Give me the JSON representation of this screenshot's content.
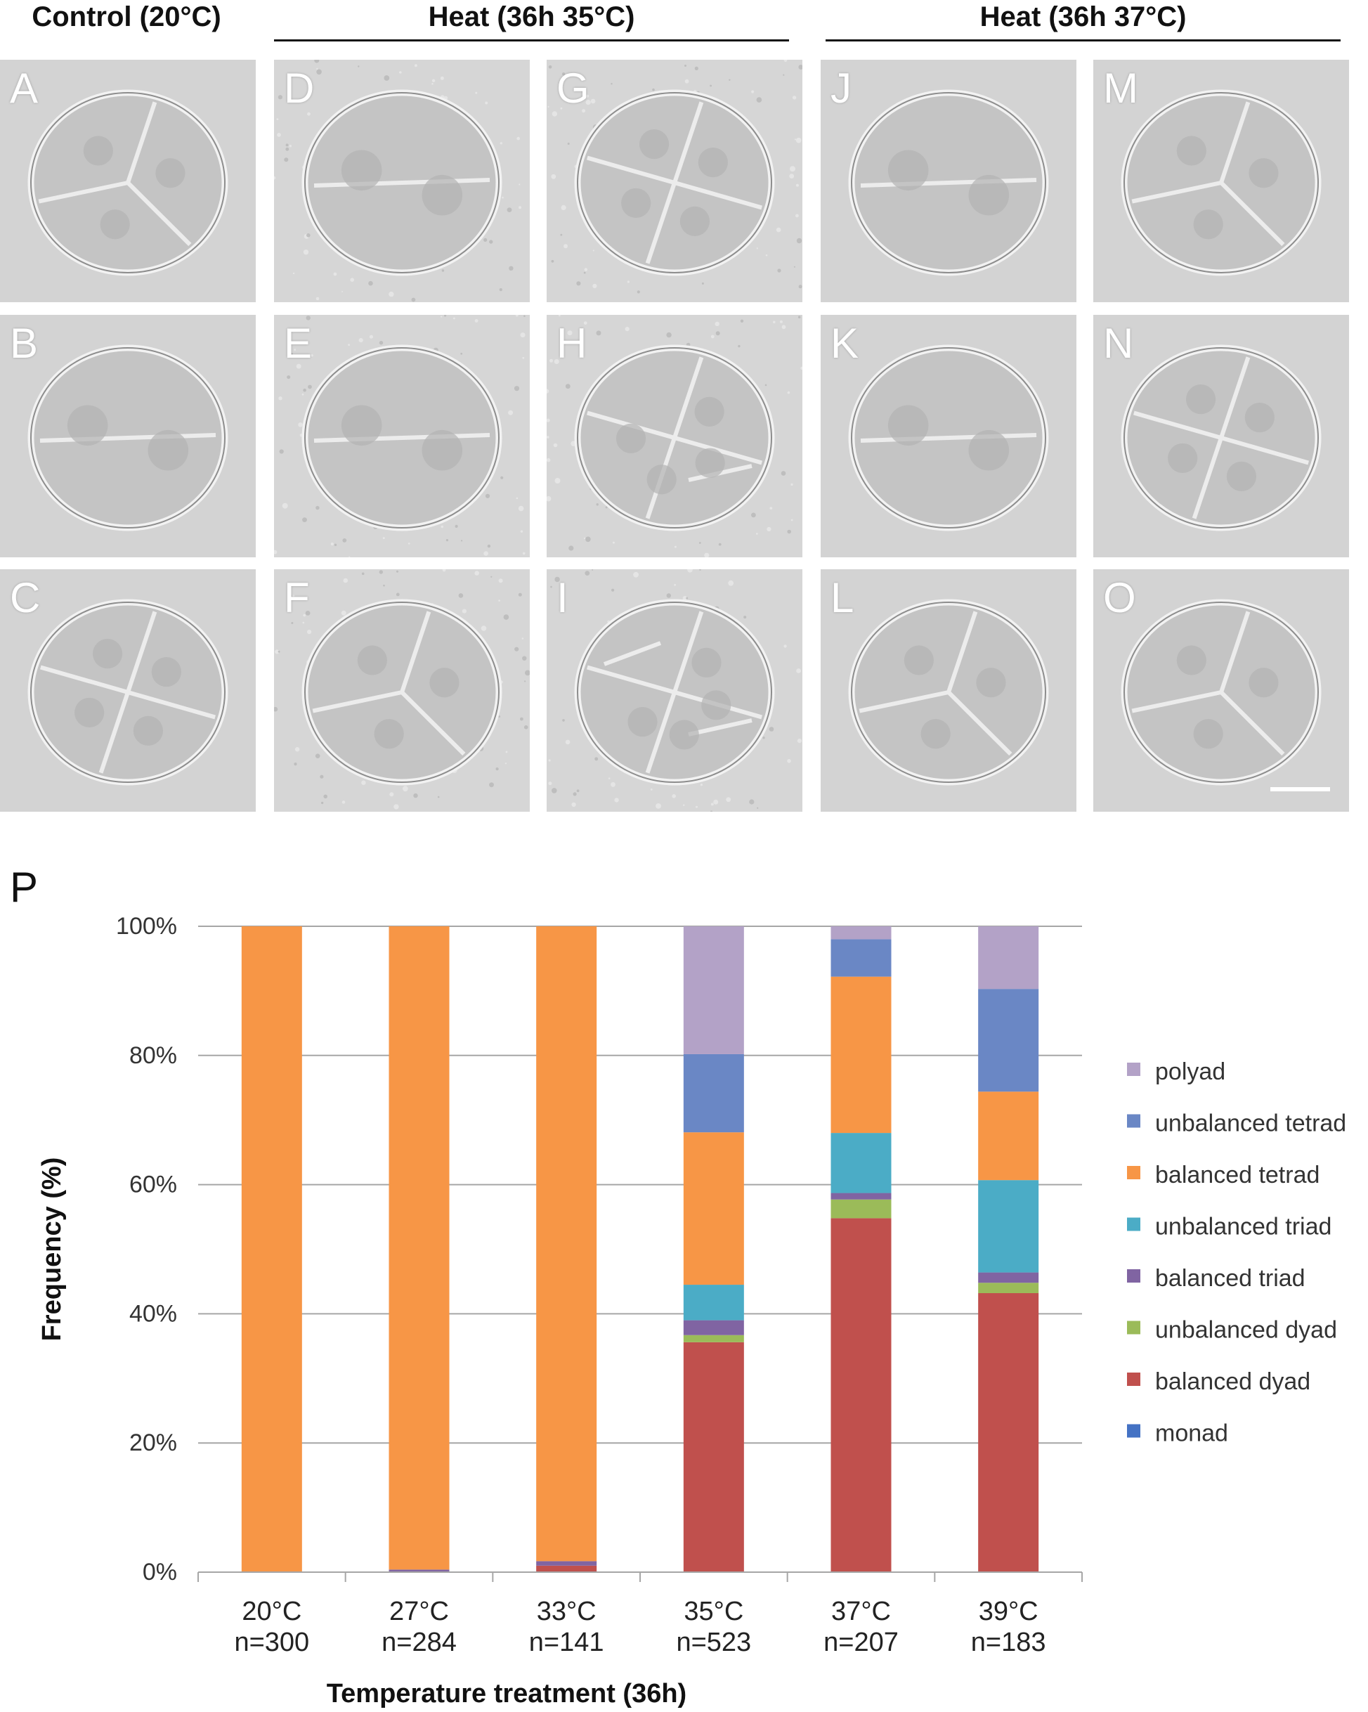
{
  "headers": {
    "control": "Control (20°C)",
    "heat35": "Heat (36h 35°C)",
    "heat37": "Heat (36h 37°C)"
  },
  "panels": [
    {
      "letter": "A",
      "cells": 3,
      "bg": "light"
    },
    {
      "letter": "B",
      "cells": 2,
      "bg": "light"
    },
    {
      "letter": "C",
      "cells": 4,
      "bg": "light"
    },
    {
      "letter": "D",
      "cells": 2,
      "bg": "speckled"
    },
    {
      "letter": "E",
      "cells": 2,
      "bg": "speckled"
    },
    {
      "letter": "F",
      "cells": 3,
      "bg": "speckled"
    },
    {
      "letter": "G",
      "cells": 4,
      "bg": "speckled"
    },
    {
      "letter": "H",
      "cells": 5,
      "bg": "speckled"
    },
    {
      "letter": "I",
      "cells": 6,
      "bg": "speckled"
    },
    {
      "letter": "J",
      "cells": 2,
      "bg": "light"
    },
    {
      "letter": "K",
      "cells": 2,
      "bg": "light"
    },
    {
      "letter": "L",
      "cells": 3,
      "bg": "light"
    },
    {
      "letter": "M",
      "cells": 3,
      "bg": "light"
    },
    {
      "letter": "N",
      "cells": 4,
      "bg": "light"
    },
    {
      "letter": "O",
      "cells": 3,
      "bg": "light"
    }
  ],
  "chart_label": "P",
  "chart_data": {
    "type": "bar",
    "stacked": true,
    "ylabel": "Frequency (%)",
    "xlabel": "Temperature treatment (36h)",
    "ylim": [
      0,
      100
    ],
    "yticks": [
      "0%",
      "20%",
      "40%",
      "60%",
      "80%",
      "100%"
    ],
    "categories": [
      "20°C",
      "27°C",
      "33°C",
      "35°C",
      "37°C",
      "39°C"
    ],
    "category_sublabels": [
      "n=300",
      "n=284",
      "n=141",
      "n=523",
      "n=207",
      "n=183"
    ],
    "grid": true,
    "legend_position": "right",
    "series": [
      {
        "name": "monad",
        "color": "#4472C4",
        "values": [
          0,
          0,
          0,
          0,
          0,
          0
        ]
      },
      {
        "name": "balanced dyad",
        "color": "#C0504D",
        "values": [
          0,
          0,
          1.0,
          35.6,
          54.8,
          43.2
        ]
      },
      {
        "name": "unbalanced dyad",
        "color": "#9BBB59",
        "values": [
          0,
          0,
          0,
          1.1,
          2.9,
          1.6
        ]
      },
      {
        "name": "balanced triad",
        "color": "#8064A2",
        "values": [
          0,
          0.4,
          0.7,
          2.3,
          1.0,
          1.6
        ]
      },
      {
        "name": "unbalanced triad",
        "color": "#4BACC6",
        "values": [
          0,
          0,
          0,
          5.5,
          9.3,
          14.3
        ]
      },
      {
        "name": "balanced tetrad",
        "color": "#F79646",
        "values": [
          100,
          99.6,
          98.3,
          23.6,
          24.2,
          13.7
        ]
      },
      {
        "name": "unbalanced tetrad",
        "color": "#6A87C5",
        "values": [
          0,
          0,
          0,
          12.1,
          5.8,
          15.9
        ]
      },
      {
        "name": "polyad",
        "color": "#B3A2C7",
        "values": [
          0,
          0,
          0,
          19.8,
          2.0,
          9.7
        ]
      }
    ]
  }
}
